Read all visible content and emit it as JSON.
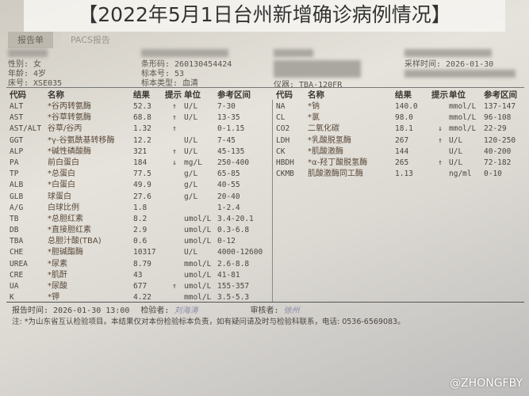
{
  "banner": {
    "title": "【2022年5月1日台州新增确诊病例情况】"
  },
  "tabs": [
    {
      "label": "报告单"
    },
    {
      "label": "PACS报告"
    }
  ],
  "patient": {
    "gender": "性别: 女",
    "age": "年龄: 4岁",
    "bed": "床号: XSE035",
    "barcode": "条形码: 260130454424",
    "specimen_no": "标本号: 53",
    "specimen_type": "标本类型: 血清",
    "instrument": "仪器: TBA-120FR",
    "sample_time": "采样时间: 2026-01-30"
  },
  "columns": [
    "代码",
    "名称",
    "结果",
    "提示",
    "单位",
    "参考区间"
  ],
  "left_rows": [
    [
      "ALT",
      "*谷丙转氨酶",
      "52.3",
      "↑",
      "U/L",
      "7-30"
    ],
    [
      "AST",
      "*谷草转氨酶",
      "68.8",
      "↑",
      "U/L",
      "13-35"
    ],
    [
      "AST/ALT",
      "谷草/谷丙",
      "1.32",
      "↑",
      "",
      "0-1.15"
    ],
    [
      "GGT",
      "*γ-谷氨酰基转移酶",
      "12.2",
      "",
      "U/L",
      "7-45"
    ],
    [
      "ALP",
      "*碱性磷酸酶",
      "321",
      "↑",
      "U/L",
      "45-135"
    ],
    [
      "PA",
      "前白蛋白",
      "184",
      "↓",
      "mg/L",
      "250-400"
    ],
    [
      "TP",
      "*总蛋白",
      "77.5",
      "",
      "g/L",
      "65-85"
    ],
    [
      "ALB",
      "*白蛋白",
      "49.9",
      "",
      "g/L",
      "40-55"
    ],
    [
      "GLB",
      "球蛋白",
      "27.6",
      "",
      "g/L",
      "20-40"
    ],
    [
      "A/G",
      "白球比例",
      "1.8",
      "",
      "",
      "1-2.4"
    ],
    [
      "TB",
      "*总胆红素",
      "8.2",
      "",
      "umol/L",
      "3.4-20.1"
    ],
    [
      "DB",
      "*直接胆红素",
      "2.9",
      "",
      "umol/L",
      "0.3-6.8"
    ],
    [
      "TBA",
      "总胆汁酸(TBA)",
      "0.6",
      "",
      "umol/L",
      "0-12"
    ],
    [
      "CHE",
      "*胆碱酯酶",
      "10317",
      "",
      "U/L",
      "4000-12600"
    ],
    [
      "UREA",
      "*尿素",
      "8.79",
      "",
      "mmol/L",
      "2.6-8.8"
    ],
    [
      "CRE",
      "*肌酐",
      "43",
      "",
      "umol/L",
      "41-81"
    ],
    [
      "UA",
      "*尿酸",
      "677",
      "↑",
      "umol/L",
      "155-357"
    ],
    [
      "K",
      "*钾",
      "4.22",
      "",
      "mmol/L",
      "3.5-5.3"
    ]
  ],
  "right_rows": [
    [
      "NA",
      "*钠",
      "140.0",
      "",
      "mmol/L",
      "137-147"
    ],
    [
      "CL",
      "*氯",
      "98.0",
      "",
      "mmol/L",
      "96-108"
    ],
    [
      "CO2",
      "二氧化碳",
      "18.1",
      "↓",
      "mmol/L",
      "22-29"
    ],
    [
      "LDH",
      "*乳酸脱氢酶",
      "267",
      "↑",
      "U/L",
      "120-250"
    ],
    [
      "CK",
      "*肌酸激酶",
      "144",
      "",
      "U/L",
      "40-200"
    ],
    [
      "HBDH",
      "*α-羟丁酸脱氢酶",
      "265",
      "↑",
      "U/L",
      "72-182"
    ],
    [
      "CKMB",
      "肌酸激酶同工酶",
      "1.13",
      "",
      "ng/ml",
      "0-10"
    ]
  ],
  "footer": {
    "report_time": "报告时间: 2026-01-30 13:00",
    "tester_label": "检验者:",
    "tester_sig": "刘海涛",
    "reviewer_label": "审核者:",
    "reviewer_sig": "徐州"
  },
  "note": "注: *为山东省互认检验项目。本结果仅对本份检验标本负责，如有疑问请及时与检验科联系，电话: 0536-6569083。",
  "watermark": "@ZHONGFBY"
}
